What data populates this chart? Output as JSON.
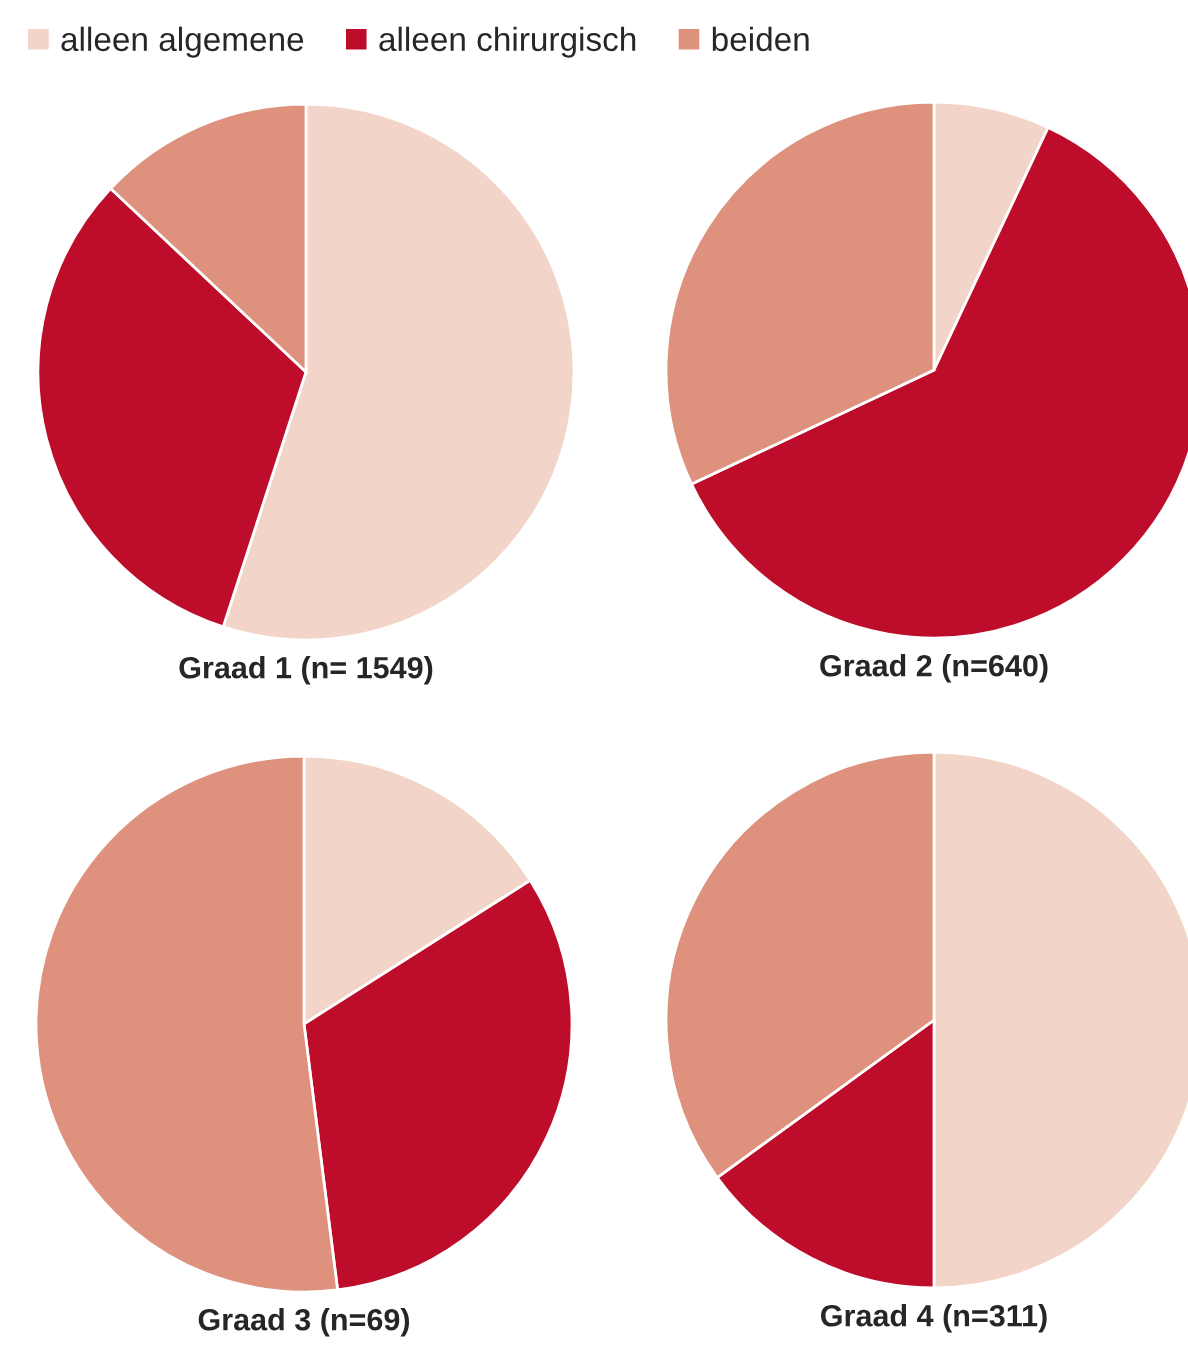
{
  "chart_data": [
    {
      "type": "pie",
      "title": "Graad 1 (n= 1549)",
      "categories": [
        "alleen algemene",
        "alleen chirurgisch",
        "beiden"
      ],
      "values": [
        55,
        32,
        13
      ],
      "colors": [
        "#f2d4c8",
        "#be0d2a",
        "#de917c"
      ],
      "legend": "top"
    },
    {
      "type": "pie",
      "title": "Graad 2 (n=640)",
      "categories": [
        null,
        null,
        null
      ],
      "values": [
        7,
        61,
        32
      ],
      "colors": [
        "#f2d4c8",
        "#be0d2a",
        "#de917c"
      ]
    },
    {
      "type": "pie",
      "title": "Graad 3 (n=69)",
      "categories": [
        null,
        null,
        null
      ],
      "values": [
        16,
        32,
        52
      ],
      "colors": [
        "#f2d4c8",
        "#be0d2a",
        "#de917c"
      ]
    },
    {
      "type": "pie",
      "title": "Graad 4 (n=311)",
      "categories": [
        null,
        null,
        null
      ],
      "values": [
        50,
        15,
        35
      ],
      "colors": [
        "#f2d4c8",
        "#be0d2a",
        "#de917c"
      ]
    }
  ]
}
